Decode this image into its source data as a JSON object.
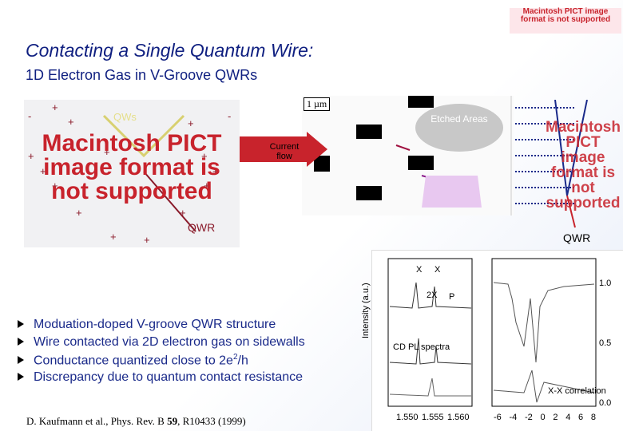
{
  "header": {
    "title": "Contacting a Single Quantum Wire:",
    "subtitle": "1D Electron Gas in V-Groove QWRs"
  },
  "placeholder": "Macintosh PICT image format is not supported",
  "left_figure": {
    "qws": "QWs",
    "qwr": "QWR"
  },
  "middle_figure": {
    "scale": "1 µm",
    "etched": "Etched Areas",
    "current": "Current flow",
    "qwr": "QWR"
  },
  "bullets": [
    {
      "text": "Moduation-doped V-groove QWR structure"
    },
    {
      "text": "Wire contacted via 2D electron gas on sidewalls"
    },
    {
      "before": "Conductance quantized close to 2e",
      "sup": "2",
      "after": "/h"
    },
    {
      "text": "Discrepancy due to quantum contact resistance"
    }
  ],
  "citation": {
    "before": "D. Kaufmann et al., Phys. Rev. B ",
    "volume": "59",
    "after": ", R10433 (1999)"
  },
  "plot": {
    "y_label": "Intensity (a.u.)",
    "peak_x1": "X",
    "peak_x2": "X",
    "peak_2x": "2X",
    "legend_pl": "CD PL spectra",
    "legend_corr": "X-X correlation",
    "p_exc": "P",
    "x_ticks": [
      "1.550",
      "1.555",
      "1.560"
    ],
    "right_ticks": [
      "1.0",
      "0.5",
      "0.0"
    ],
    "corr_ticks": [
      "-6",
      "-4",
      "-2",
      "0",
      "2",
      "4",
      "6",
      "8"
    ]
  }
}
